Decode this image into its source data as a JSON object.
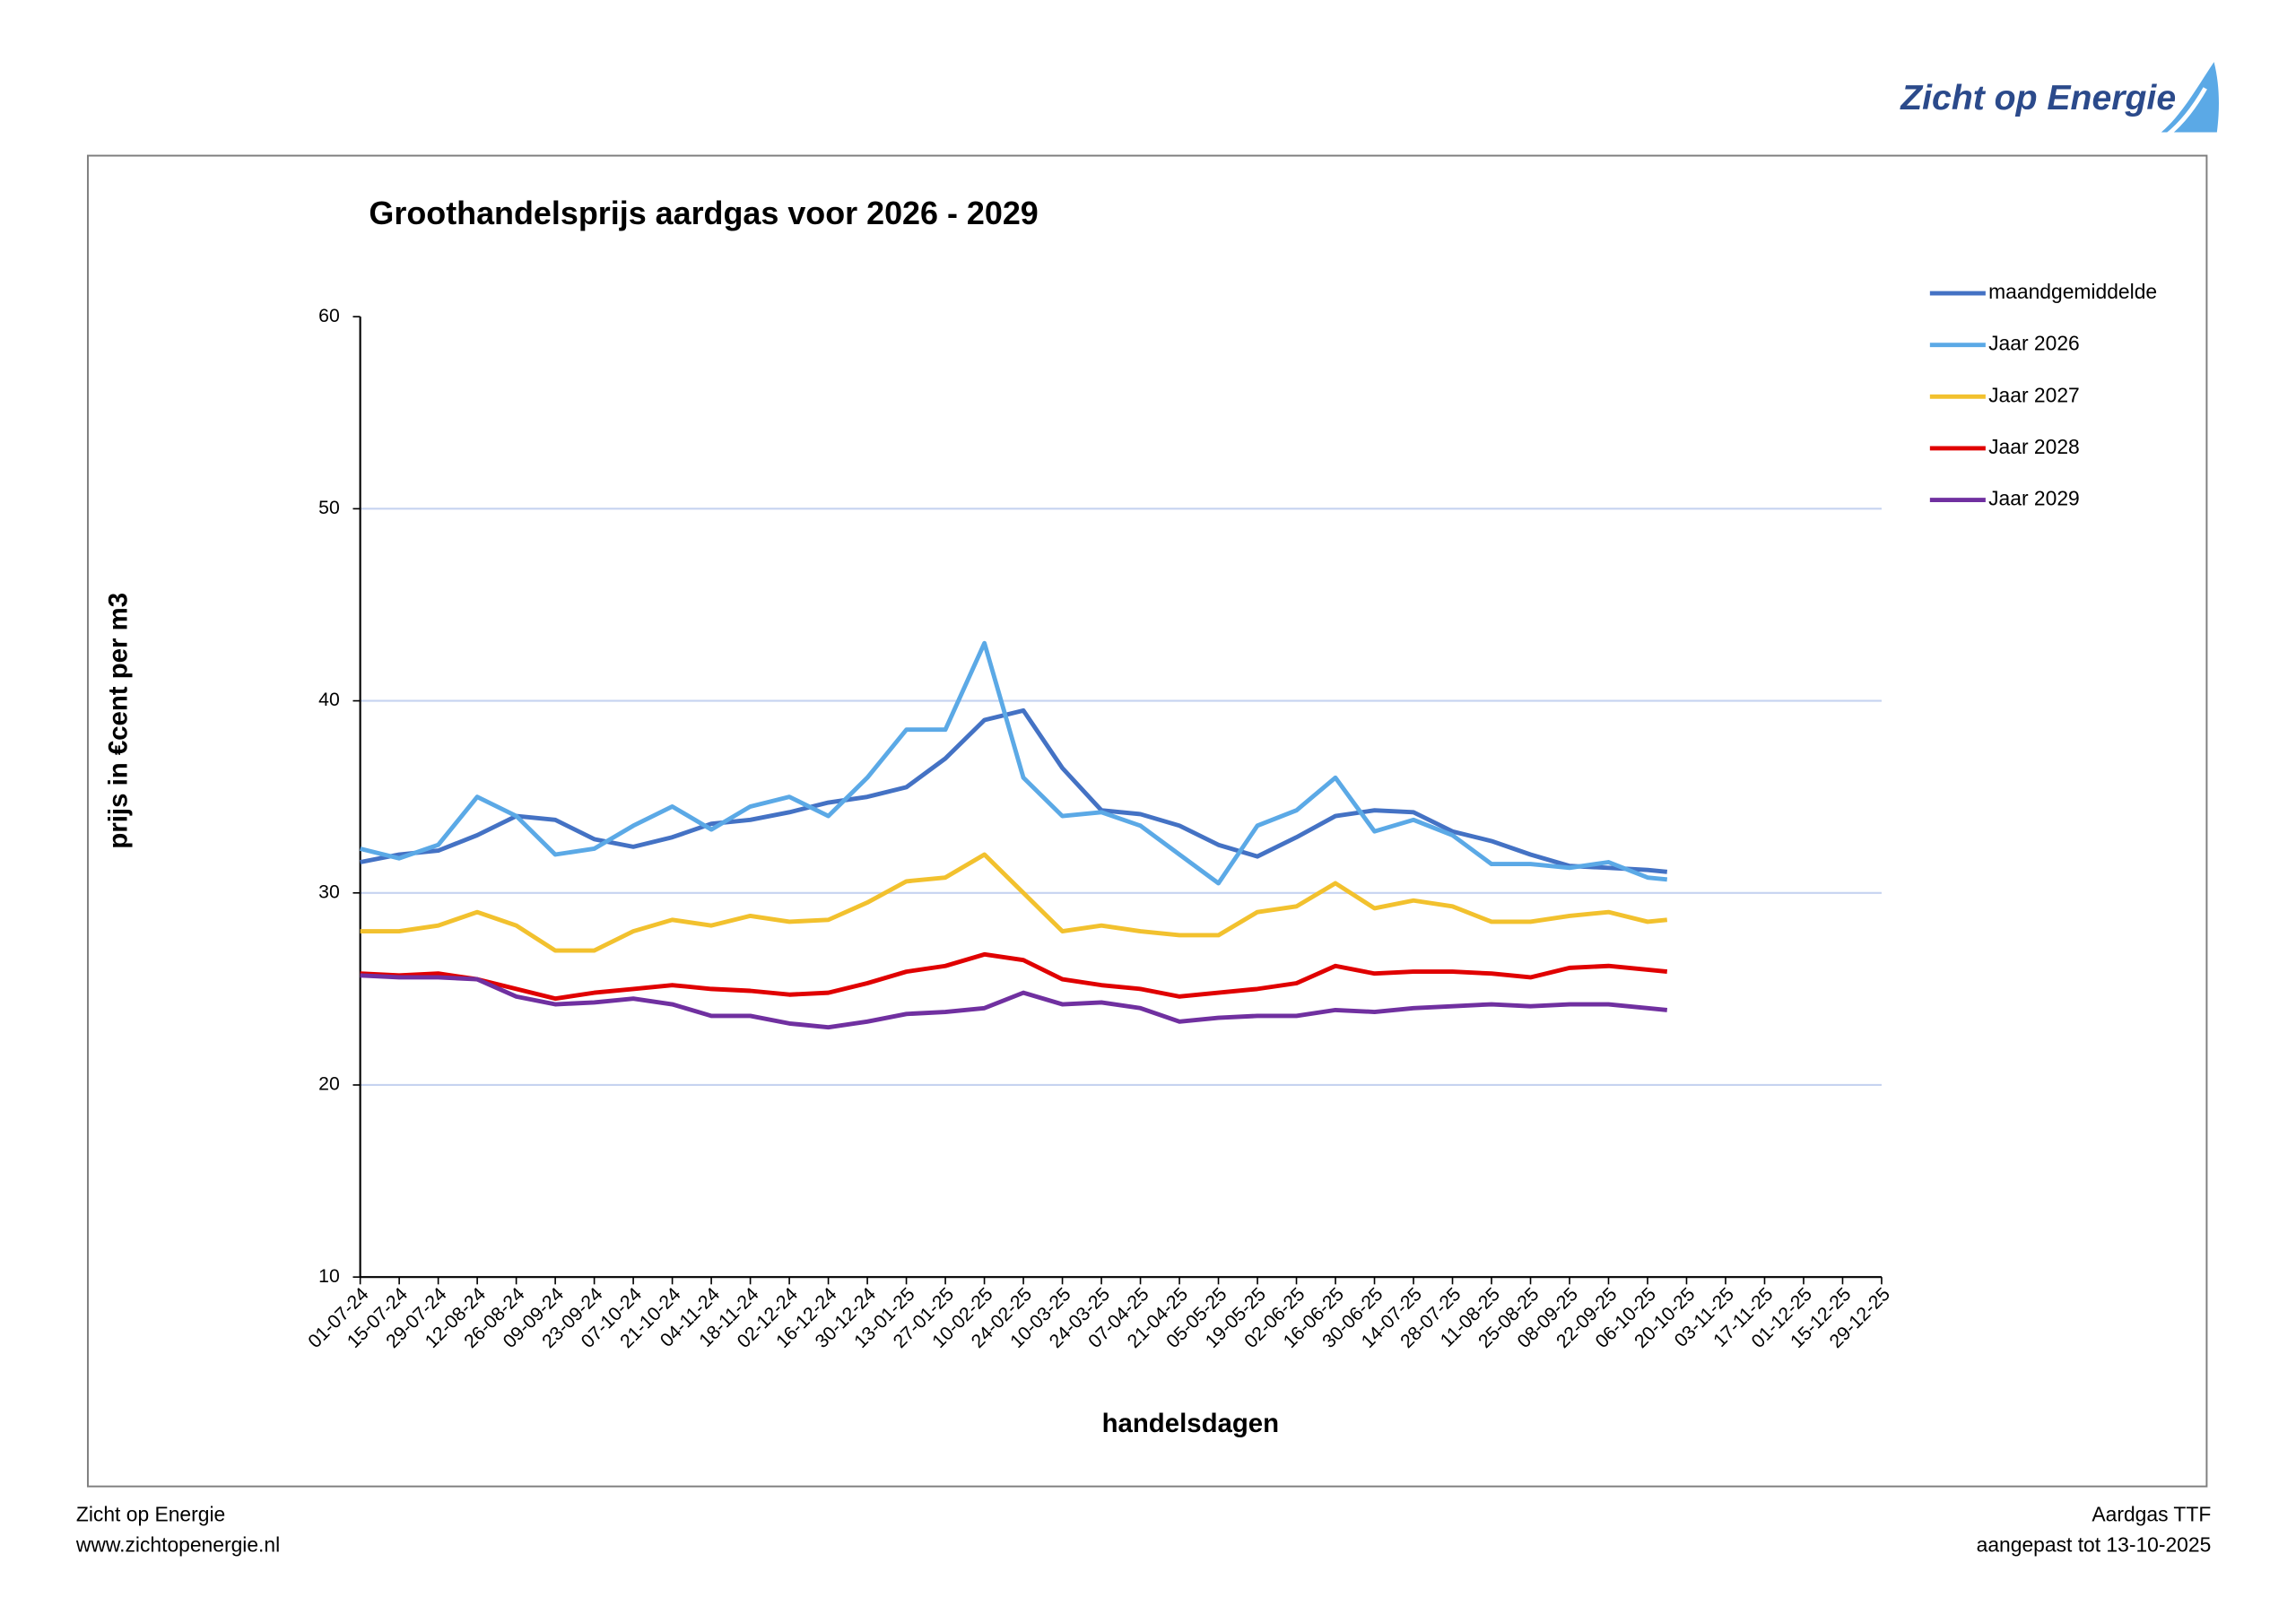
{
  "page": {
    "logo": "Zicht op Energie",
    "footer_left": [
      "Zicht op Energie",
      "www.zichtopenergie.nl"
    ],
    "footer_right": [
      "Aardgas TTF",
      "aangepast tot 13-10-2025"
    ]
  },
  "chart_data": {
    "type": "line",
    "title": "Groothandelsprijs aardgas voor 2026 - 2029",
    "x_label": "handelsdagen",
    "y_label": "prijs in €cent  per m3",
    "x": [
      "01-07-24",
      "15-07-24",
      "29-07-24",
      "12-08-24",
      "26-08-24",
      "09-09-24",
      "23-09-24",
      "07-10-24",
      "21-10-24",
      "04-11-24",
      "18-11-24",
      "02-12-24",
      "16-12-24",
      "30-12-24",
      "13-01-25",
      "27-01-25",
      "10-02-25",
      "24-02-25",
      "10-03-25",
      "24-03-25",
      "07-04-25",
      "21-04-25",
      "05-05-25",
      "19-05-25",
      "02-06-25",
      "16-06-25",
      "30-06-25",
      "14-07-25",
      "28-07-25",
      "11-08-25",
      "25-08-25",
      "08-09-25",
      "22-09-25",
      "06-10-25",
      "13-10-25"
    ],
    "series": [
      {
        "name": "maandgemiddelde",
        "color": "#4472c4",
        "values": [
          31.6,
          32.0,
          32.2,
          33.0,
          34.0,
          33.8,
          32.8,
          32.4,
          32.9,
          33.6,
          33.8,
          34.2,
          34.7,
          35.0,
          35.5,
          37.0,
          39.0,
          39.5,
          36.5,
          34.3,
          34.1,
          33.5,
          32.5,
          31.9,
          32.9,
          34.0,
          34.3,
          34.2,
          33.2,
          32.7,
          32.0,
          31.4,
          31.3,
          31.2,
          31.1
        ]
      },
      {
        "name": "Jaar 2026",
        "color": "#5ba9e6",
        "values": [
          32.3,
          31.8,
          32.5,
          35.0,
          34.0,
          32.0,
          32.3,
          33.5,
          34.5,
          33.3,
          34.5,
          35.0,
          34.0,
          36.0,
          38.5,
          38.5,
          43.0,
          36.0,
          34.0,
          34.2,
          33.5,
          32.0,
          30.5,
          33.5,
          34.3,
          36.0,
          33.2,
          33.8,
          33.0,
          31.5,
          31.5,
          31.3,
          31.6,
          30.8,
          30.7
        ]
      },
      {
        "name": "Jaar 2027",
        "color": "#f2c12e",
        "values": [
          28.0,
          28.0,
          28.3,
          29.0,
          28.3,
          27.0,
          27.0,
          28.0,
          28.6,
          28.3,
          28.8,
          28.5,
          28.6,
          29.5,
          30.6,
          30.8,
          32.0,
          30.0,
          28.0,
          28.3,
          28.0,
          27.8,
          27.8,
          29.0,
          29.3,
          30.5,
          29.2,
          29.6,
          29.3,
          28.5,
          28.5,
          28.8,
          29.0,
          28.5,
          28.6
        ]
      },
      {
        "name": "Jaar 2028",
        "color": "#e00000",
        "values": [
          25.8,
          25.7,
          25.8,
          25.5,
          25.0,
          24.5,
          24.8,
          25.0,
          25.2,
          25.0,
          24.9,
          24.7,
          24.8,
          25.3,
          25.9,
          26.2,
          26.8,
          26.5,
          25.5,
          25.2,
          25.0,
          24.6,
          24.8,
          25.0,
          25.3,
          26.2,
          25.8,
          25.9,
          25.9,
          25.8,
          25.6,
          26.1,
          26.2,
          26.0,
          25.9
        ]
      },
      {
        "name": "Jaar 2029",
        "color": "#7030a0",
        "values": [
          25.7,
          25.6,
          25.6,
          25.5,
          24.6,
          24.2,
          24.3,
          24.5,
          24.2,
          23.6,
          23.6,
          23.2,
          23.0,
          23.3,
          23.7,
          23.8,
          24.0,
          24.8,
          24.2,
          24.3,
          24.0,
          23.3,
          23.5,
          23.6,
          23.6,
          23.9,
          23.8,
          24.0,
          24.1,
          24.2,
          24.1,
          24.2,
          24.2,
          24.0,
          23.9
        ]
      }
    ],
    "xlim": [
      "01-07-24",
      "29-12-25"
    ],
    "xticks": [
      "01-07-24",
      "15-07-24",
      "29-07-24",
      "12-08-24",
      "26-08-24",
      "09-09-24",
      "23-09-24",
      "07-10-24",
      "21-10-24",
      "04-11-24",
      "18-11-24",
      "02-12-24",
      "16-12-24",
      "30-12-24",
      "13-01-25",
      "27-01-25",
      "10-02-25",
      "24-02-25",
      "10-03-25",
      "24-03-25",
      "07-04-25",
      "21-04-25",
      "05-05-25",
      "19-05-25",
      "02-06-25",
      "16-06-25",
      "30-06-25",
      "14-07-25",
      "28-07-25",
      "11-08-25",
      "25-08-25",
      "08-09-25",
      "22-09-25",
      "06-10-25",
      "20-10-25",
      "03-11-25",
      "17-11-25",
      "01-12-25",
      "15-12-25",
      "29-12-25"
    ],
    "ylim": [
      10,
      60
    ],
    "yticks": [
      10,
      20,
      30,
      40,
      50,
      60
    ],
    "grid": true,
    "legend": "right"
  }
}
